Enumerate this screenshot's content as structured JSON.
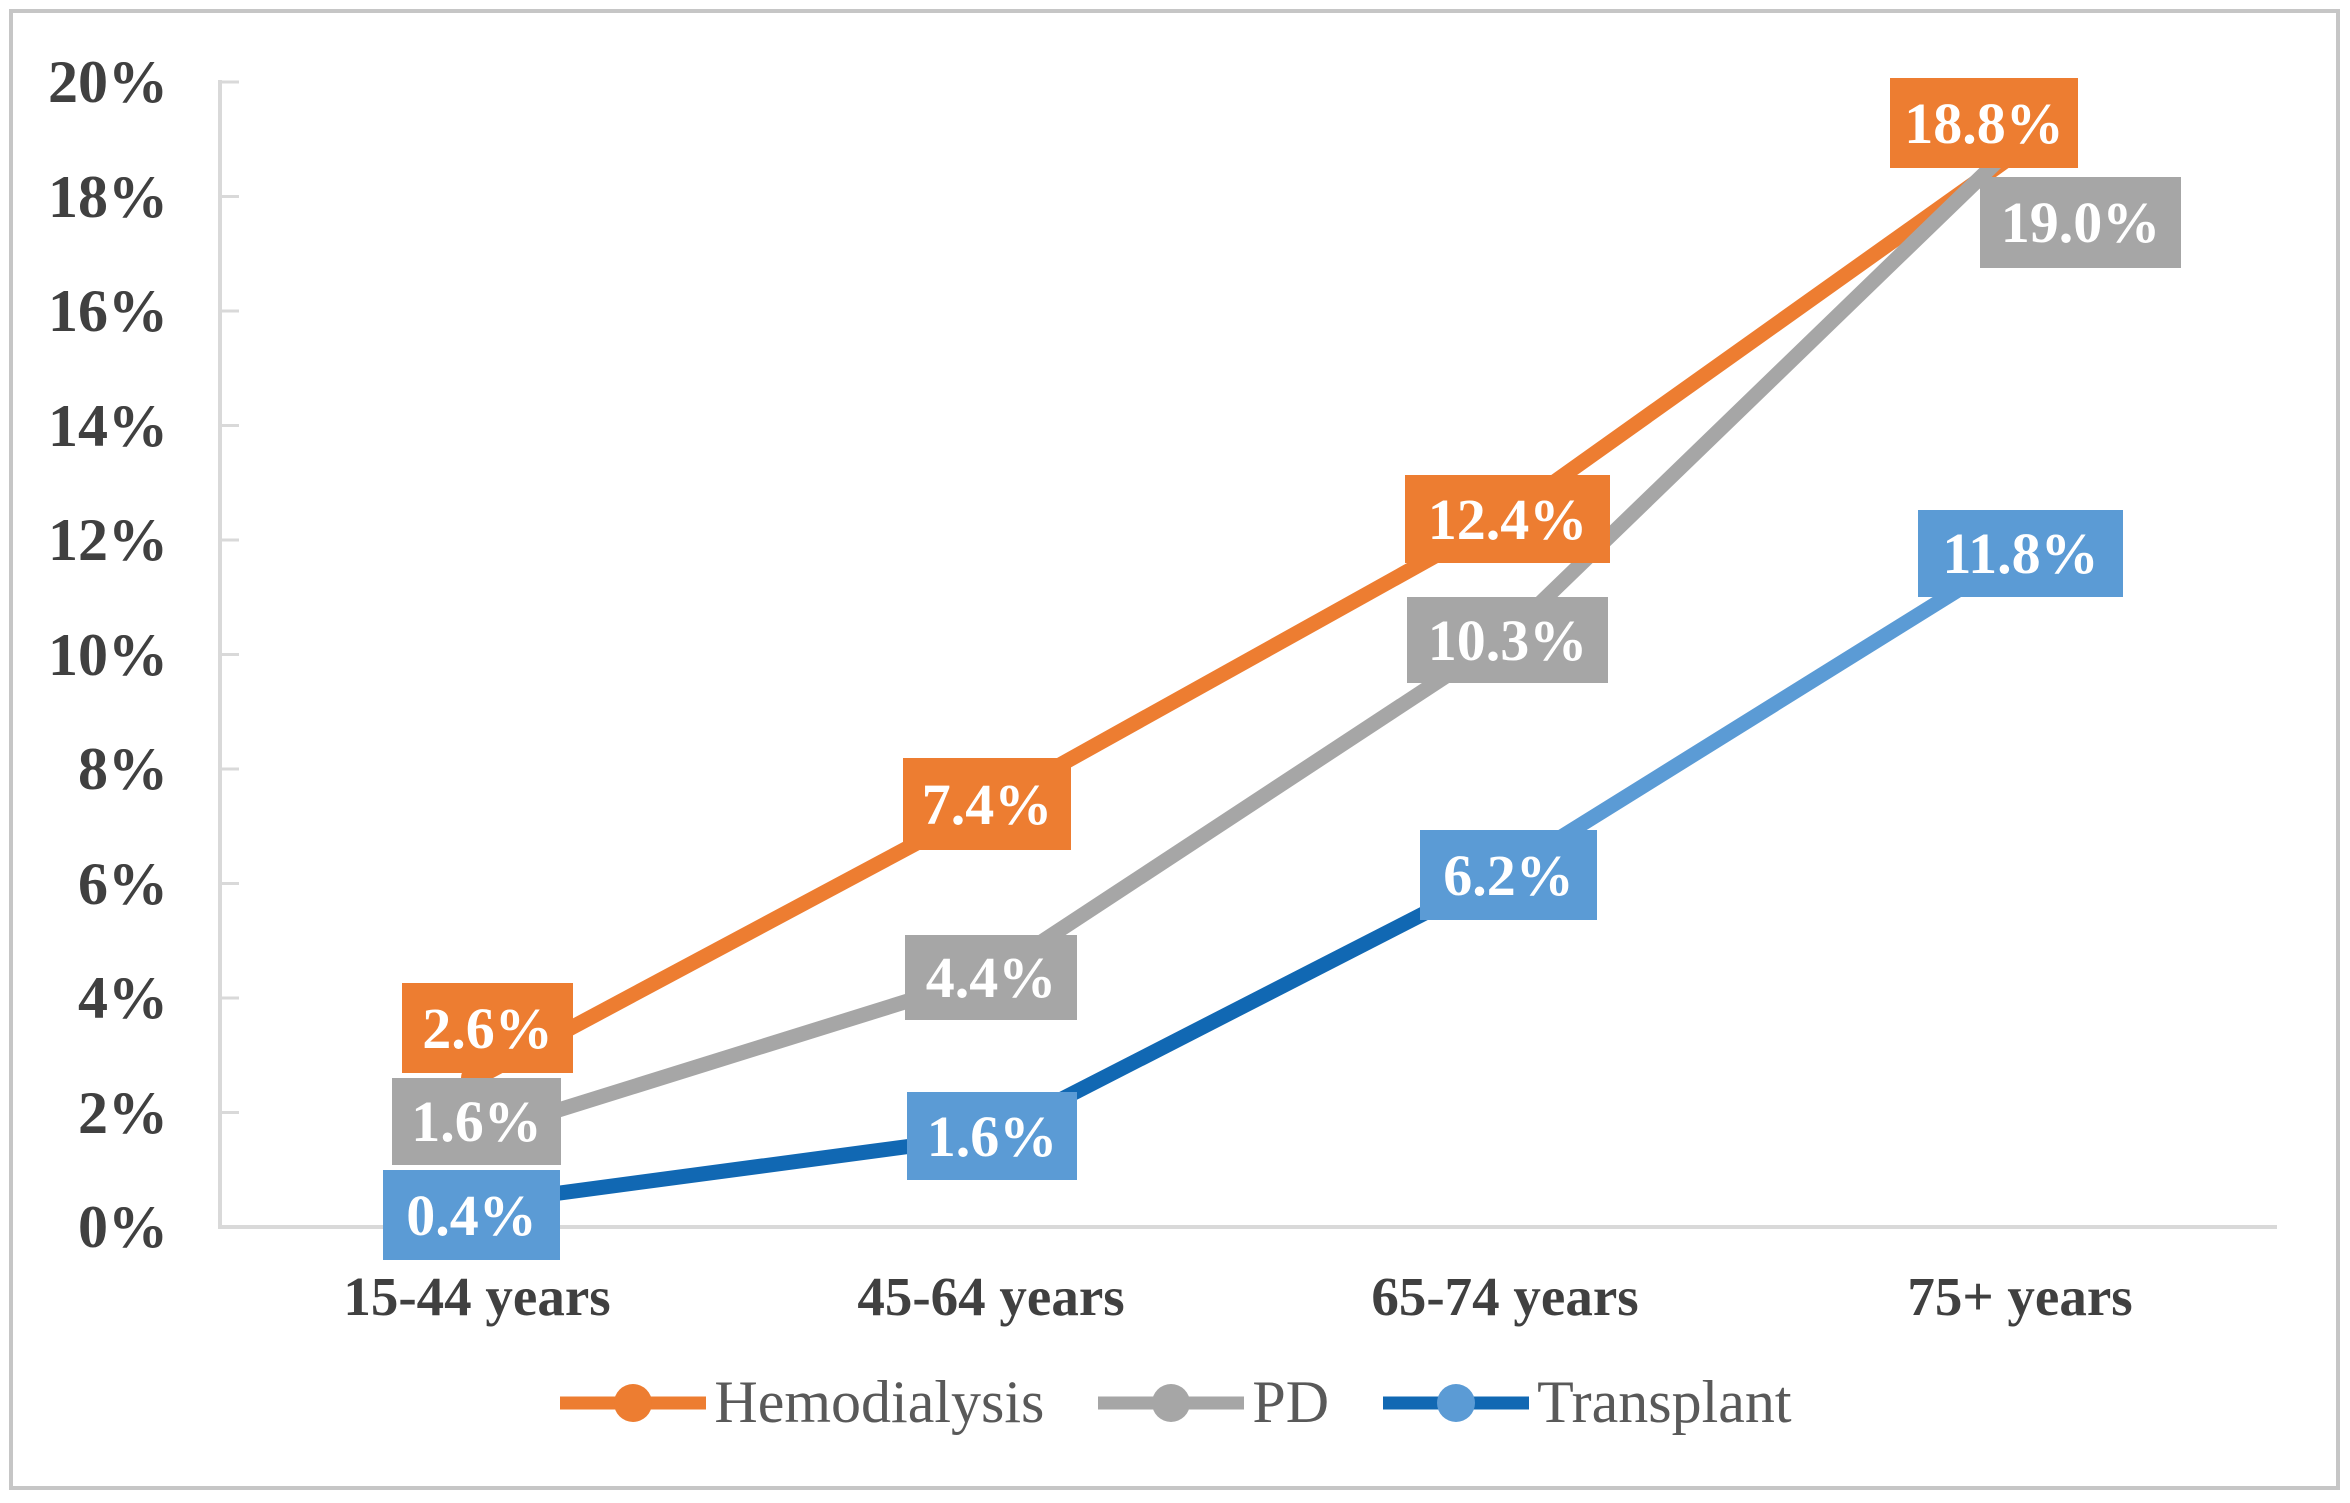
{
  "chart_data": {
    "type": "line",
    "title": "",
    "xlabel": "",
    "ylabel": "",
    "categories": [
      "15-44 years",
      "45-64 years",
      "65-74 years",
      "75+ years"
    ],
    "series": [
      {
        "name": "Hemodialysis",
        "values": [
          2.6,
          7.4,
          12.4,
          18.8
        ],
        "labels": [
          "2.6%",
          "7.4%",
          "12.4%",
          "18.8%"
        ],
        "line_color": "#ED7D31",
        "segment_colors": [
          "#ED7D31",
          "#ED7D31",
          "#ED7D31"
        ],
        "marker_color": "#ED7D31",
        "label_bg": "#ED7D31"
      },
      {
        "name": "PD",
        "values": [
          1.6,
          4.4,
          10.3,
          19.0
        ],
        "labels": [
          "1.6%",
          "4.4%",
          "10.3%",
          "19.0%"
        ],
        "line_color": "#A6A6A6",
        "segment_colors": [
          "#A6A6A6",
          "#A6A6A6",
          "#A6A6A6"
        ],
        "marker_color": "#A6A6A6",
        "label_bg": "#A6A6A6"
      },
      {
        "name": "Transplant",
        "values": [
          0.4,
          1.6,
          6.2,
          11.8
        ],
        "labels": [
          "0.4%",
          "1.6%",
          "6.2%",
          "11.8%"
        ],
        "line_color": "#1168B3",
        "segment_colors": [
          "#1168B3",
          "#1168B3",
          "#5B9BD5"
        ],
        "marker_color": "#5B9BD5",
        "label_bg": "#5B9BD5"
      }
    ],
    "y_ticks": [
      "0%",
      "2%",
      "4%",
      "6%",
      "8%",
      "10%",
      "12%",
      "14%",
      "16%",
      "18%",
      "20%"
    ],
    "ylim": [
      0,
      20
    ],
    "grid": false,
    "legend_position": "bottom",
    "legend": [
      "Hemodialysis",
      "PD",
      "Transplant"
    ],
    "data_label_text_color": "#FFFFFF",
    "axis_color": "#D9D9D9",
    "tick_label_color": "#404040",
    "legend_text_color": "#595959",
    "frame_border_color": "#C6C6C6"
  }
}
